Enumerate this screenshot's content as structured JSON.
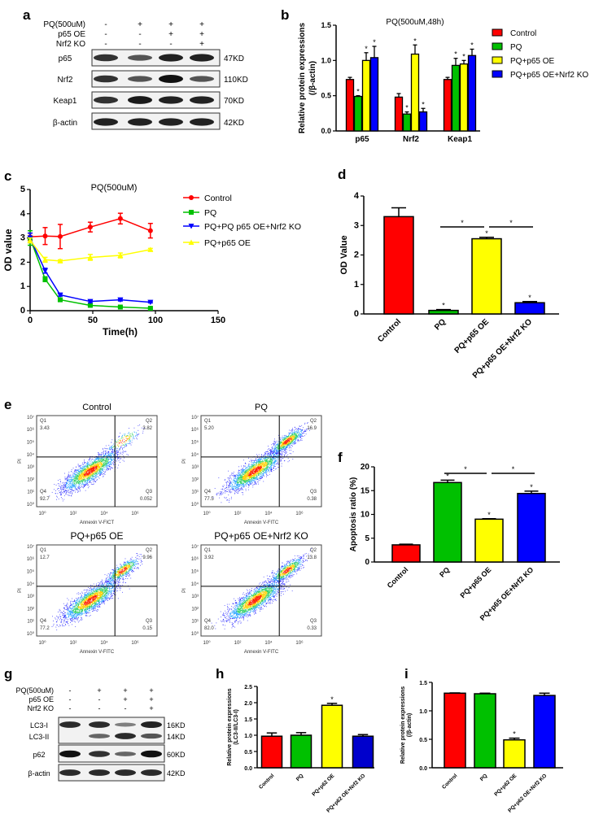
{
  "panel_labels": {
    "a": "a",
    "b": "b",
    "c": "c",
    "d": "d",
    "e": "e",
    "f": "f",
    "g": "g",
    "h": "h",
    "i": "i"
  },
  "colors": {
    "control": "#ff0000",
    "pq": "#00c000",
    "oe": "#ffff00",
    "ko": "#0000ff",
    "ko_dark": "#0000cc"
  },
  "blot_a": {
    "conditions": [
      {
        "label": "PQ(500uM)",
        "values": [
          "-",
          "+",
          "+",
          "+"
        ]
      },
      {
        "label": "p65 OE",
        "values": [
          "-",
          "-",
          "+",
          "+"
        ]
      },
      {
        "label": "Nrf2 KO",
        "values": [
          "-",
          "-",
          "-",
          "+"
        ]
      }
    ],
    "rows": [
      {
        "label": "p65",
        "kd": "47KD",
        "band_intensity": [
          0.8,
          0.6,
          0.9,
          0.9
        ]
      },
      {
        "label": "Nrf2",
        "kd": "110KD",
        "band_intensity": [
          0.8,
          0.6,
          1.0,
          0.6
        ]
      },
      {
        "label": "Keap1",
        "kd": "70KD",
        "band_intensity": [
          0.8,
          0.95,
          0.9,
          0.9
        ]
      },
      {
        "label": "β-actin",
        "kd": "42KD",
        "band_intensity": [
          0.9,
          0.9,
          0.9,
          0.9
        ]
      }
    ]
  },
  "blot_g": {
    "conditions": [
      {
        "label": "PQ(500uM)",
        "values": [
          "-",
          "+",
          "+",
          "+"
        ]
      },
      {
        "label": "p65 OE",
        "values": [
          "-",
          "-",
          "+",
          "+"
        ]
      },
      {
        "label": "Nrf2 KO",
        "values": [
          "-",
          "-",
          "-",
          "+"
        ]
      }
    ],
    "rows": [
      {
        "label": "LC3-I",
        "kd": "16KD",
        "band_intensity": [
          0.85,
          0.85,
          0.35,
          0.9
        ]
      },
      {
        "label": "LC3-II",
        "kd": "14KD",
        "band_intensity": [
          0.0,
          0.5,
          0.85,
          0.6
        ]
      },
      {
        "label": "p62",
        "kd": "60KD",
        "band_intensity": [
          1.0,
          0.8,
          0.5,
          1.0
        ]
      },
      {
        "label": "β-actin",
        "kd": "42KD",
        "band_intensity": [
          0.85,
          0.85,
          0.85,
          0.85
        ]
      }
    ]
  },
  "chart_data": [
    {
      "id": "b",
      "type": "bar",
      "title": "PQ(500uM,48h)",
      "xlabel": "",
      "ylabel": "Relative protein expressions",
      "ylabel2": "(/β-actin)",
      "ylim": [
        0,
        1.5
      ],
      "yticks": [
        "0.0",
        "0.5",
        "1.0",
        "1.5"
      ],
      "ytick_values": [
        0,
        0.5,
        1.0,
        1.5
      ],
      "categories": [
        "p65",
        "Nrf2",
        "Keap1"
      ],
      "legend_position": "right",
      "series": [
        {
          "name": "Control",
          "values": [
            0.73,
            0.48,
            0.73
          ],
          "errors": [
            0.03,
            0.05,
            0.03
          ],
          "stars": [
            "",
            "",
            ""
          ]
        },
        {
          "name": "PQ",
          "values": [
            0.49,
            0.24,
            0.93
          ],
          "errors": [
            0.01,
            0.03,
            0.1
          ],
          "stars": [
            "*",
            "*",
            "*"
          ]
        },
        {
          "name": "PQ+p65 OE",
          "values": [
            1.0,
            1.09,
            0.95
          ],
          "errors": [
            0.11,
            0.13,
            0.05
          ],
          "stars": [
            "*",
            "*",
            "*"
          ]
        },
        {
          "name": "PQ+p65 OE+Nrf2 KO",
          "values": [
            1.04,
            0.27,
            1.07
          ],
          "errors": [
            0.16,
            0.05,
            0.09
          ],
          "stars": [
            "*",
            "*",
            "*"
          ]
        }
      ]
    },
    {
      "id": "c",
      "type": "line",
      "title": "PQ(500uM)",
      "xlabel": "Time(h)",
      "ylabel": "OD value",
      "xlim": [
        0,
        150
      ],
      "xticks": [
        "0",
        "50",
        "100",
        "150"
      ],
      "xtick_values": [
        0,
        50,
        100,
        150
      ],
      "ylim": [
        0,
        5
      ],
      "yticks": [
        "0",
        "1",
        "2",
        "3",
        "4",
        "5"
      ],
      "ytick_values": [
        0,
        1,
        2,
        3,
        4,
        5
      ],
      "x": [
        0,
        12,
        24,
        48,
        72,
        96
      ],
      "legend_position": "right",
      "series": [
        {
          "name": "Control",
          "marker": "circle",
          "values": [
            3.05,
            3.08,
            3.06,
            3.45,
            3.8,
            3.3
          ],
          "errors": [
            0.15,
            0.35,
            0.5,
            0.2,
            0.22,
            0.3
          ]
        },
        {
          "name": "PQ",
          "marker": "square",
          "values": [
            3.0,
            1.3,
            0.45,
            0.22,
            0.15,
            0.1
          ],
          "errors": [
            0.3,
            0.1,
            0.05,
            0.05,
            0.03,
            0.03
          ]
        },
        {
          "name": "PQ+PQ p65 OE+Nrf2 KO",
          "marker": "triangle-down",
          "values": [
            3.0,
            1.65,
            0.65,
            0.38,
            0.45,
            0.35
          ],
          "errors": [
            0.2,
            0.1,
            0.05,
            0.05,
            0.05,
            0.03
          ]
        },
        {
          "name": "PQ+p65 OE",
          "marker": "triangle-up",
          "values": [
            2.9,
            2.1,
            2.05,
            2.2,
            2.28,
            2.52
          ],
          "errors": [
            0.1,
            0.1,
            0.05,
            0.12,
            0.1,
            0.05
          ]
        }
      ]
    },
    {
      "id": "d",
      "type": "bar",
      "ylabel": "OD Value",
      "ylim": [
        0,
        4
      ],
      "yticks": [
        "0",
        "1",
        "2",
        "3",
        "4"
      ],
      "ytick_values": [
        0,
        1,
        2,
        3,
        4
      ],
      "categories": [
        "Control",
        "PQ",
        "PQ+p65 OE",
        "PQ+p65 OE+Nrf2 KO"
      ],
      "values": [
        3.3,
        0.12,
        2.55,
        0.38
      ],
      "errors": [
        0.3,
        0.03,
        0.05,
        0.04
      ],
      "stars": [
        "",
        "*",
        "*",
        "*"
      ],
      "brackets": [
        {
          "from": 1,
          "to": 2,
          "label": "*"
        },
        {
          "from": 2,
          "to": 3,
          "label": "*"
        }
      ]
    },
    {
      "id": "e",
      "type": "scatter",
      "subtype": "flow-cytometry",
      "plots": [
        {
          "title": "Control",
          "xlabel": "Annexin V-FICT",
          "ylabel": "PI",
          "q1": "3.43",
          "q2": "3.82",
          "q3": "0.052",
          "q4": "92.7"
        },
        {
          "title": "PQ",
          "xlabel": "Annexin V-FITC",
          "ylabel": "PI",
          "q1": "5.20",
          "q2": "16.9",
          "q3": "0.38",
          "q4": "77.5"
        },
        {
          "title": "PQ+p65 OE",
          "xlabel": "Annexin V-FITC",
          "ylabel": "PI",
          "q1": "12.7",
          "q2": "9.96",
          "q3": "0.15",
          "q4": "77.2"
        },
        {
          "title": "PQ+p65 OE+Nrf2 KO",
          "xlabel": "Annexin V-FITC",
          "ylabel": "PI",
          "q1": "3.92",
          "q2": "13.8",
          "q3": "0.33",
          "q4": "82.0"
        }
      ],
      "quadrant_names": [
        "Q1",
        "Q2",
        "Q3",
        "Q4"
      ],
      "xticks": [
        "10⁰",
        "10²",
        "10⁴",
        "10⁶"
      ],
      "yticks": [
        "10⁰",
        "10¹",
        "10²",
        "10³",
        "10⁴",
        "10⁵",
        "10⁶",
        "10⁷"
      ]
    },
    {
      "id": "f",
      "type": "bar",
      "ylabel": "Apoptosis ratio (%)",
      "ylim": [
        0,
        20
      ],
      "yticks": [
        "0",
        "5",
        "10",
        "15",
        "20"
      ],
      "ytick_values": [
        0,
        5,
        10,
        15,
        20
      ],
      "categories": [
        "Control",
        "PQ",
        "PQ+p65 OE",
        "PQ+p65 OE+Nrf2 KO"
      ],
      "values": [
        3.6,
        16.7,
        9.0,
        14.4
      ],
      "errors": [
        0.15,
        0.5,
        0.1,
        0.5
      ],
      "stars": [
        "",
        "*",
        "*",
        "*"
      ],
      "brackets": [
        {
          "from": 1,
          "to": 2,
          "label": "*"
        },
        {
          "from": 2,
          "to": 3,
          "label": "*"
        }
      ]
    },
    {
      "id": "h",
      "type": "bar",
      "ylabel": "Relative protein expressions",
      "ylabel2": "(LC3-II/LC3-I)",
      "ylim": [
        0,
        2.5
      ],
      "yticks": [
        "0.0",
        "0.5",
        "1.0",
        "1.5",
        "2.0",
        "2.5"
      ],
      "ytick_values": [
        0,
        0.5,
        1,
        1.5,
        2,
        2.5
      ],
      "categories": [
        "Control",
        "PQ",
        "PQ+p62 OE",
        "PQ+p62 OE+Nrf2 KO"
      ],
      "values": [
        0.97,
        1.0,
        1.92,
        0.97
      ],
      "errors": [
        0.1,
        0.08,
        0.06,
        0.05
      ],
      "stars": [
        "",
        "",
        "*",
        ""
      ]
    },
    {
      "id": "i",
      "type": "bar",
      "ylabel": "Relative protein expressions",
      "ylabel2": "(/β-actin)",
      "ylim": [
        0,
        1.5
      ],
      "yticks": [
        "0.0",
        "0.5",
        "1.0",
        "1.5"
      ],
      "ytick_values": [
        0,
        0.5,
        1,
        1.5
      ],
      "categories": [
        "Control",
        "PQ",
        "PQ+p62 OE",
        "PQ+p62 OE+Nrf2 KO"
      ],
      "values": [
        1.31,
        1.3,
        0.49,
        1.27
      ],
      "errors": [
        0.005,
        0.01,
        0.03,
        0.04
      ],
      "stars": [
        "",
        "",
        "*",
        ""
      ]
    }
  ]
}
